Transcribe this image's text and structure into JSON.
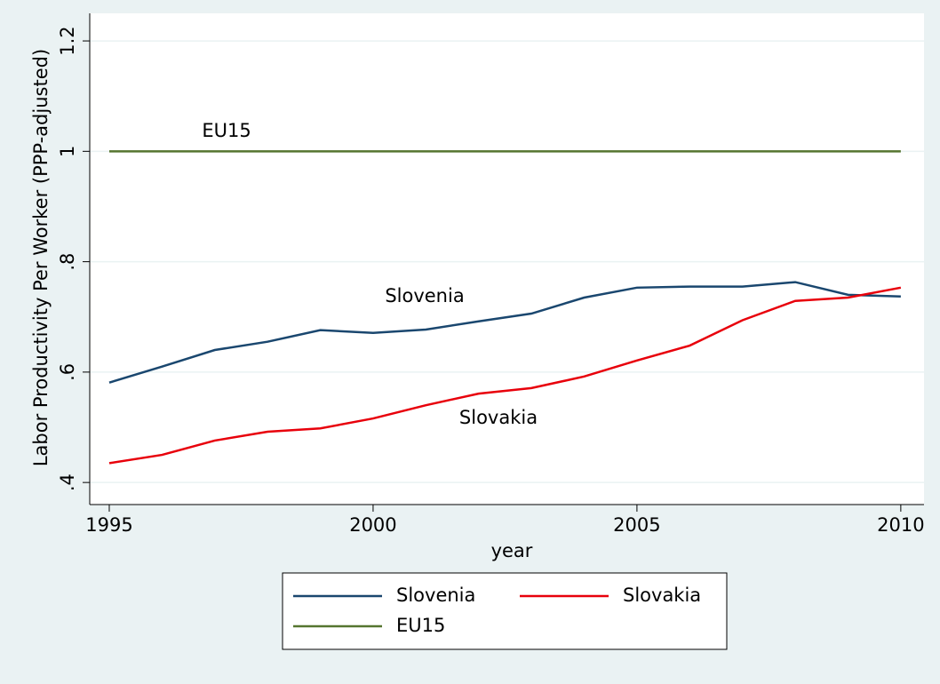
{
  "chart_data": {
    "type": "line",
    "x_label": "year",
    "y_label": "Labor Productivity Per Worker (PPP-adjusted)",
    "x": [
      1995,
      1996,
      1997,
      1998,
      1999,
      2000,
      2001,
      2002,
      2003,
      2004,
      2005,
      2006,
      2007,
      2008,
      2009,
      2010
    ],
    "series": [
      {
        "name": "Slovenia",
        "color": "#1a476f",
        "values": [
          0.581,
          0.61,
          0.64,
          0.655,
          0.676,
          0.671,
          0.677,
          0.692,
          0.706,
          0.735,
          0.753,
          0.755,
          0.755,
          0.763,
          0.74,
          0.737
        ]
      },
      {
        "name": "Slovakia",
        "color": "#e8000b",
        "values": [
          0.435,
          0.45,
          0.476,
          0.492,
          0.498,
          0.516,
          0.54,
          0.561,
          0.571,
          0.592,
          0.621,
          0.648,
          0.694,
          0.729,
          0.735,
          0.753
        ]
      },
      {
        "name": "EU15",
        "color": "#55752f",
        "values": [
          1,
          1,
          1,
          1,
          1,
          1,
          1,
          1,
          1,
          1,
          1,
          1,
          1,
          1,
          1,
          1
        ]
      }
    ],
    "annotations": [
      "EU15",
      "Slovenia",
      "Slovakia"
    ],
    "xlim": [
      1994.63,
      2010.44
    ],
    "xticks": [
      1995,
      2000,
      2005,
      2010
    ],
    "ylim": [
      0.36,
      1.25
    ],
    "yticks": [
      {
        "value": 0.4,
        "label": ".4"
      },
      {
        "value": 0.6,
        "label": ".6"
      },
      {
        "value": 0.8,
        "label": ".8"
      },
      1,
      {
        "value": 1.2,
        "label": "1.2"
      }
    ],
    "grid": true,
    "legend": "bottom"
  }
}
